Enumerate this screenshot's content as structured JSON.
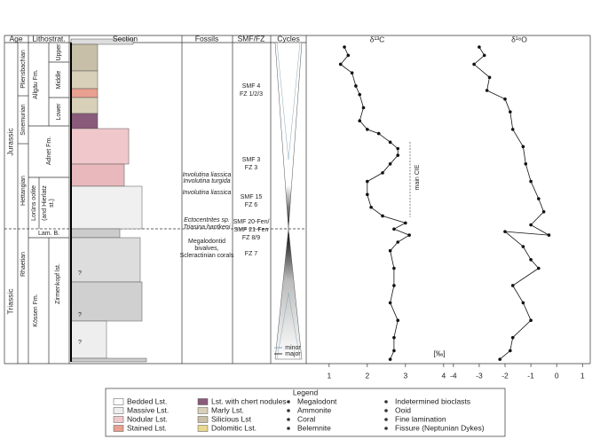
{
  "headers": [
    "Age",
    "Lithostrat.",
    "Section",
    "Fossils",
    "SMF/FZ",
    "Cycles"
  ],
  "age": {
    "periods": [
      "Jurassic",
      "Triassic"
    ],
    "stages": [
      "Pliensbachian",
      "Sinemurian",
      "Hettangian",
      "Rhaetian"
    ]
  },
  "lithostratigraphy": {
    "units": [
      "Allgäu Fm.",
      "Adnet Fm.",
      "Lorüns oolite",
      "(and Hierlatz",
      "st.)",
      "Lam. B.",
      "Kössen Fm.",
      "Zirmenkopf lst."
    ],
    "members": [
      "Upper",
      "Middle",
      "Lower"
    ]
  },
  "section_marks": [
    "?",
    "?",
    "?"
  ],
  "fossils": [
    "Involutina liassica",
    "Involutina turgida",
    "Involutina liassica",
    "Ectocentrites sp.",
    "Triasina hantkeni",
    "Megalodontid",
    "bivalves,",
    "Scleractinian corals"
  ],
  "smf_fz": [
    "SMF 4",
    "FZ 1/2/3",
    "SMF 3",
    "FZ 3",
    "SMF 15",
    "FZ 6",
    "SMF 20-Fen/",
    "SMF 21-Fen",
    "FZ 8/9",
    "FZ 7"
  ],
  "cycles_legend": [
    "minor",
    "major"
  ],
  "chart_data": [
    {
      "type": "line",
      "title": "δ¹³C",
      "annotation": "main CIE",
      "x_label": "[‰]",
      "color": "#111111",
      "xlim": [
        0.4,
        4.12
      ],
      "xticks": [
        1,
        2,
        3,
        4
      ],
      "ylim": [
        0,
        100
      ],
      "values": [
        1.4,
        1.5,
        1.3,
        1.6,
        1.7,
        1.8,
        1.9,
        1.8,
        2.0,
        2.3,
        2.6,
        2.8,
        2.8,
        2.6,
        2.4,
        2.0,
        2.0,
        2.1,
        2.4,
        3.0,
        2.7,
        3.1,
        2.8,
        2.6,
        2.7,
        2.7,
        2.6,
        2.8,
        2.7,
        2.7,
        2.6
      ],
      "heights": [
        98.6,
        96,
        93.2,
        90.5,
        86.4,
        83.7,
        79.6,
        75.5,
        72.8,
        71.5,
        68.8,
        66.8,
        64.7,
        62,
        59.2,
        56.5,
        52.4,
        48.4,
        45.7,
        43.5,
        41.6,
        39.7,
        37.5,
        34.8,
        29.3,
        23.9,
        18.5,
        13,
        7.6,
        3.5,
        0.8
      ]
    },
    {
      "type": "line",
      "title": "δ¹⁸O",
      "color": "#111111",
      "xlim": [
        -4.2,
        1.3
      ],
      "xticks": [
        -4,
        -3,
        -2,
        -1,
        0,
        1
      ],
      "ylim": [
        0,
        100
      ],
      "values": [
        -3.0,
        -2.8,
        -3.2,
        -2.6,
        -2.7,
        -2.0,
        -1.8,
        -1.7,
        -1.3,
        -1.2,
        -1.0,
        -0.7,
        -0.5,
        -1.0,
        -0.3,
        -2.0,
        -1.3,
        -1.0,
        -0.7,
        -1.7,
        -1.3,
        -1.0,
        -1.7,
        -1.8,
        -2.2
      ],
      "heights": [
        98.6,
        96,
        93.2,
        89.1,
        85,
        82.3,
        78.3,
        72.8,
        67.4,
        62,
        56.5,
        51.1,
        47,
        42.9,
        39.7,
        40.8,
        36.1,
        32,
        29.3,
        23.9,
        18.5,
        13,
        7.6,
        3.5,
        0.8
      ]
    }
  ],
  "legend": {
    "title": "Legend",
    "items": [
      "Bedded Lst.",
      "Massive Lst.",
      "Nodular Lst.",
      "Stained Lst.",
      "Lst. with chert nodules",
      "Marly Lst.",
      "Silicious Lst",
      "Dolomitic Lst.",
      "Megalodont",
      "Ammonite",
      "Coral",
      "Belemnite",
      "Indetermined bioclasts",
      "Ooid",
      "Fine lamination",
      "Fissure (Neptunian Dykes)"
    ]
  }
}
